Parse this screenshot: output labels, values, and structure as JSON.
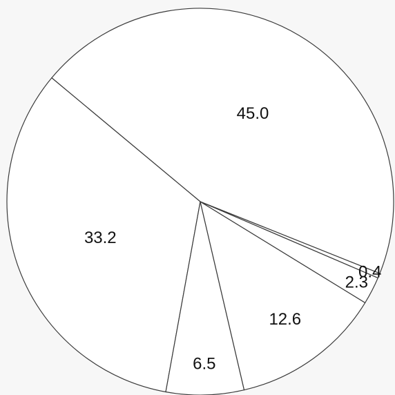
{
  "chart_data": {
    "type": "pie",
    "title": "",
    "slices": [
      {
        "label": "45.0",
        "value": 45.0
      },
      {
        "label": "33.2",
        "value": 33.2
      },
      {
        "label": "6.5",
        "value": 6.5
      },
      {
        "label": "12.6",
        "value": 12.6
      },
      {
        "label": "2.3",
        "value": 2.3
      },
      {
        "label": "0.4",
        "value": 0.4
      }
    ],
    "legend": "none",
    "colors": {
      "fill": "#ffffff",
      "stroke": "#3a3a3a",
      "background": "#f7f7f7"
    }
  }
}
